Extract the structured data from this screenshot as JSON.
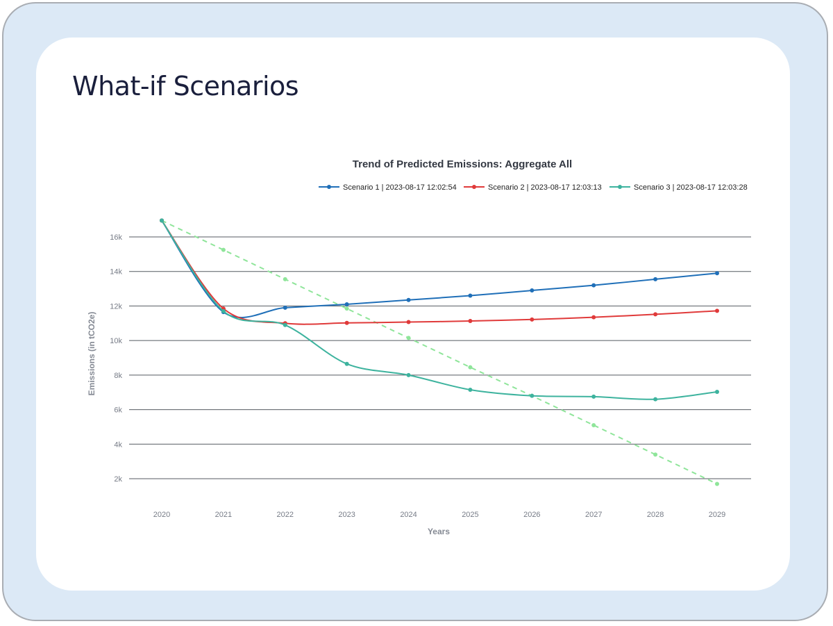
{
  "page": {
    "title": "What-if Scenarios"
  },
  "chart_data": {
    "type": "line",
    "title": "Trend of Predicted Emissions: Aggregate All",
    "xlabel": "Years",
    "ylabel": "Emissions (in tCO2e)",
    "categories": [
      "2020",
      "2021",
      "2022",
      "2023",
      "2024",
      "2025",
      "2026",
      "2027",
      "2028",
      "2029"
    ],
    "y_ticks": [
      2000,
      4000,
      6000,
      8000,
      10000,
      12000,
      14000,
      16000
    ],
    "y_tick_labels": [
      "2k",
      "4k",
      "6k",
      "8k",
      "10k",
      "12k",
      "14k",
      "16k"
    ],
    "ylim": [
      1000,
      17000
    ],
    "grid": true,
    "legend_position": "top-right",
    "series": [
      {
        "name": "Scenario 1 | 2023-08-17 12:02:54",
        "color": "#1f6fb8",
        "style": "solid",
        "values": [
          16950,
          11650,
          11900,
          12100,
          12350,
          12600,
          12900,
          13200,
          13550,
          13900
        ]
      },
      {
        "name": "Scenario 2 | 2023-08-17 12:03:13",
        "color": "#e03a3a",
        "style": "solid",
        "values": [
          16950,
          11850,
          11000,
          11020,
          11070,
          11130,
          11220,
          11350,
          11520,
          11720
        ]
      },
      {
        "name": "Scenario 3 | 2023-08-17 12:03:28",
        "color": "#3db39e",
        "style": "solid",
        "values": [
          16950,
          11700,
          10900,
          8650,
          8000,
          7150,
          6800,
          6750,
          6600,
          7030
        ]
      },
      {
        "color": "#8fe59a",
        "style": "dashed",
        "show_in_legend": false,
        "values": [
          16950,
          15250,
          13550,
          11850,
          10150,
          8450,
          6800,
          5100,
          3400,
          1700
        ]
      }
    ]
  }
}
